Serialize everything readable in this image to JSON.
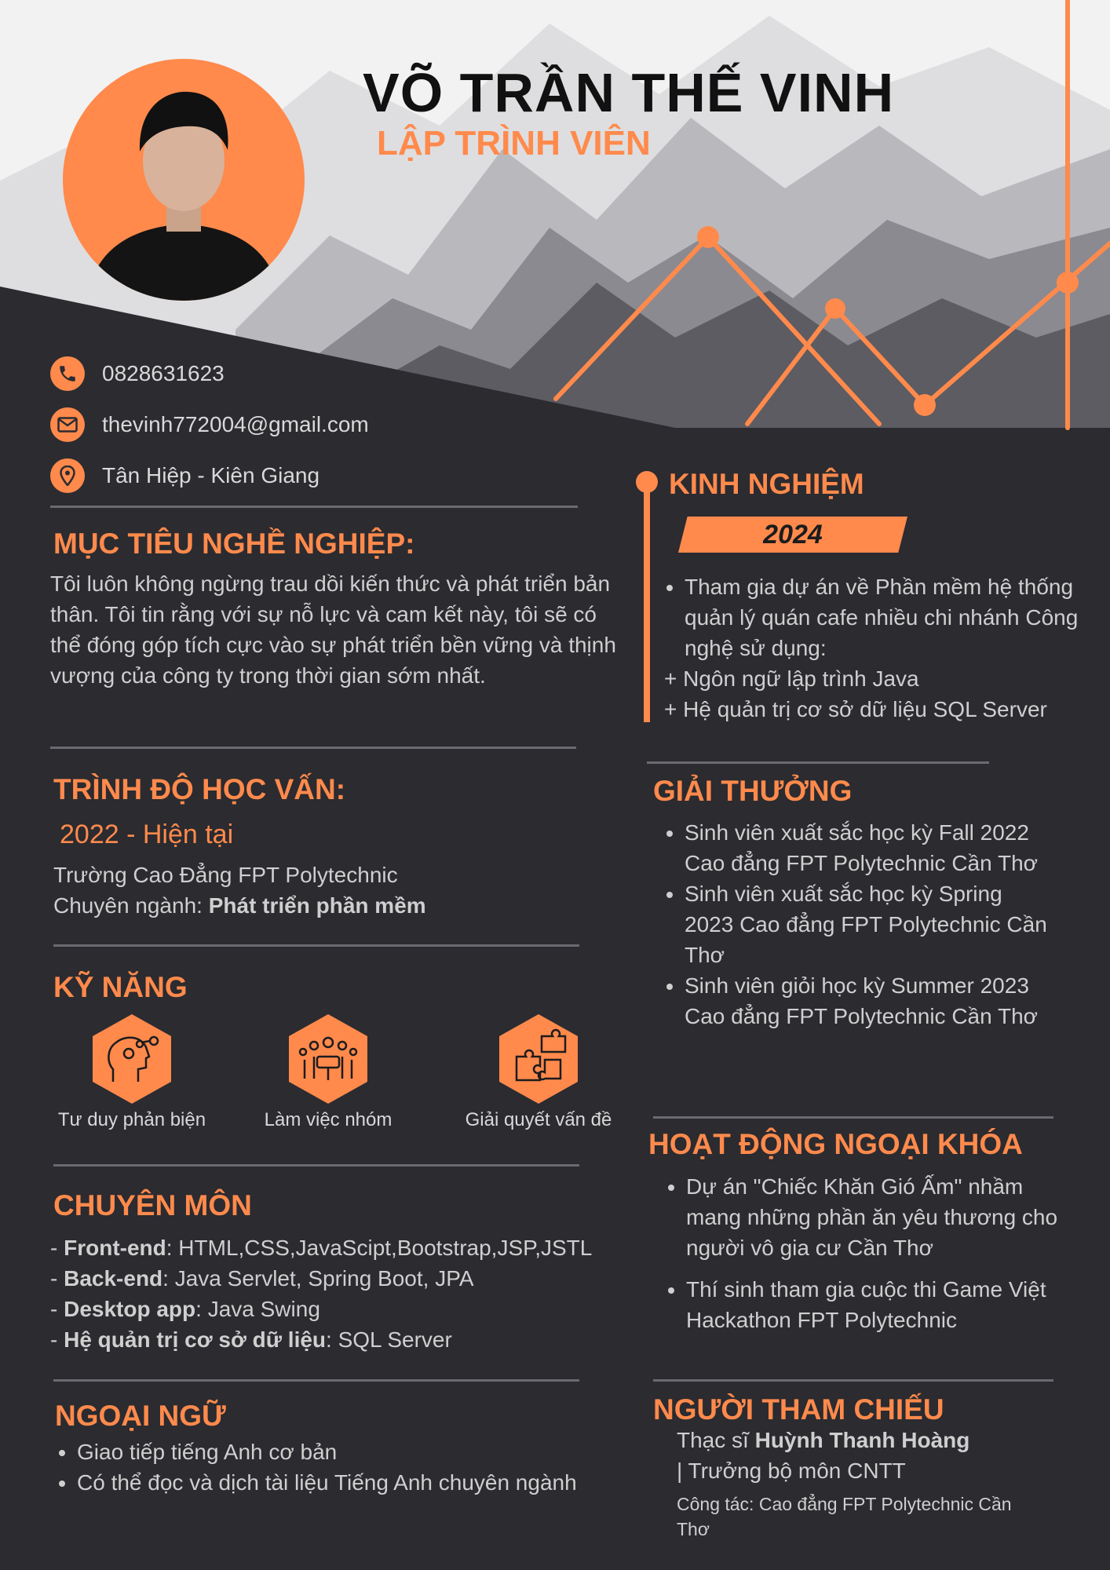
{
  "header": {
    "name": "VÕ TRẦN THẾ VINH",
    "role": "LẬP TRÌNH VIÊN"
  },
  "contact": {
    "phone": "0828631623",
    "email": "thevinh772004@gmail.com",
    "address": "Tân Hiệp - Kiên Giang"
  },
  "objective": {
    "title": "MỤC TIÊU NGHỀ NGHIỆP:",
    "text": "Tôi luôn không ngừng trau dồi kiến thức và phát triển bản thân. Tôi tin rằng với sự nỗ lực và cam kết này, tôi sẽ có thể đóng góp tích cực vào sự phát triển bền vững và thịnh vượng của công ty trong thời gian sớm nhất."
  },
  "education": {
    "title": "TRÌNH ĐỘ HỌC VẤN:",
    "period": "2022 - Hiện tại",
    "school": "Trường Cao Đẳng FPT Polytechnic",
    "major_label": "Chuyên ngành: ",
    "major_value": "Phát triển phần mềm"
  },
  "skills": {
    "title": "KỸ NĂNG",
    "items": [
      {
        "label": "Tư duy phản biện",
        "icon": "brain-gears-icon"
      },
      {
        "label": "Làm việc nhóm",
        "icon": "team-icon"
      },
      {
        "label": "Giải quyết vấn đề",
        "icon": "puzzle-icon"
      }
    ]
  },
  "expertise": {
    "title": "CHUYÊN MÔN",
    "items": [
      {
        "prefix": "- ",
        "label": "Front-end",
        "value": ": HTML,CSS,JavaScipt,Bootstrap,JSP,JSTL"
      },
      {
        "prefix": "- ",
        "label": "Back-end",
        "value": ": Java Servlet, Spring Boot, JPA"
      },
      {
        "prefix": "- ",
        "label": "Desktop app",
        "value": ": Java Swing"
      },
      {
        "prefix": "- ",
        "label": "Hệ quản trị cơ sở dữ liệu",
        "value": ": SQL Server"
      }
    ]
  },
  "languages": {
    "title": "NGOẠI NGỮ",
    "items": [
      "Giao tiếp tiếng Anh cơ bản",
      "Có thể đọc và dịch tài liệu Tiếng Anh chuyên ngành"
    ]
  },
  "experience": {
    "title": "KINH NGHIỆM",
    "year": "2024",
    "bullet": " Tham gia dự án về Phần mềm hệ thống quản lý quán cafe nhiều chi nhánh Công nghệ sử dụng:",
    "lines": [
      "+ Ngôn ngữ lập trình Java",
      "+ Hệ quản trị cơ sở dữ liệu SQL Server"
    ]
  },
  "awards": {
    "title": "GIẢI THƯỞNG",
    "items": [
      " Sinh viên xuất sắc học kỳ Fall 2022 Cao đẳng FPT Polytechnic Cần Thơ",
      "Sinh viên xuất sắc học kỳ Spring 2023 Cao đẳng FPT Polytechnic Cần Thơ",
      "Sinh viên giỏi học kỳ Summer 2023 Cao đẳng FPT Polytechnic Cần Thơ"
    ]
  },
  "activities": {
    "title": "HOẠT ĐỘNG NGOẠI KHÓA",
    "items": [
      "Dự án \"Chiếc Khăn Gió Ấm\" nhầm mang những phần ăn yêu thương cho người vô gia cư Cần Thơ",
      "Thí sinh tham gia cuộc thi Game Việt Hackathon FPT Polytechnic"
    ]
  },
  "reference": {
    "title": "NGƯỜI THAM CHIẾU",
    "prefix": "Thạc sĩ ",
    "name": "Huỳnh Thanh Hoàng",
    "position": "| Trưởng bộ môn CNTT",
    "workplace": " Công tác: Cao đẳng FPT Polytechnic Cần Thơ"
  },
  "colors": {
    "accent": "#ff8a4c",
    "background": "#2b2b30",
    "text": "#cfcfcf"
  }
}
